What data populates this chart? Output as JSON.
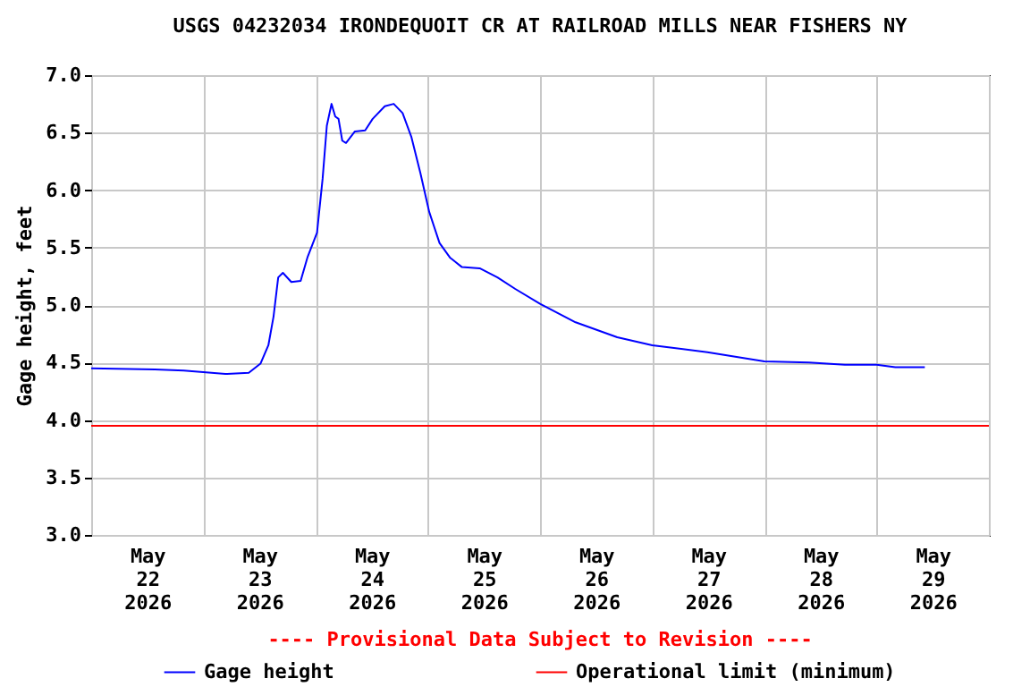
{
  "chart_data": {
    "type": "line",
    "title": "USGS 04232034 IRONDEQUOIT CR AT RAILROAD MILLS NEAR FISHERS NY",
    "ylabel": "Gage height, feet",
    "annotations": [
      "---- Provisional Data Subject to Revision ----"
    ],
    "x": [
      "2026-05-22T00:00",
      "2026-05-22T13:36",
      "2026-05-22T19:48",
      "2026-05-23T04:42",
      "2026-05-23T09:42",
      "2026-05-23T12:12",
      "2026-05-23T13:54",
      "2026-05-23T15:00",
      "2026-05-23T16:00",
      "2026-05-23T17:00",
      "2026-05-23T18:48",
      "2026-05-23T20:48",
      "2026-05-23T22:18",
      "2026-05-24T00:18",
      "2026-05-24T01:30",
      "2026-05-24T02:24",
      "2026-05-24T03:24",
      "2026-05-24T04:12",
      "2026-05-24T04:54",
      "2026-05-24T05:42",
      "2026-05-24T06:30",
      "2026-05-24T08:24",
      "2026-05-24T10:36",
      "2026-05-24T12:12",
      "2026-05-24T14:48",
      "2026-05-24T16:42",
      "2026-05-24T18:36",
      "2026-05-24T20:30",
      "2026-05-24T22:24",
      "2026-05-25T00:18",
      "2026-05-25T02:30",
      "2026-05-25T04:48",
      "2026-05-25T07:18",
      "2026-05-25T11:06",
      "2026-05-25T14:54",
      "2026-05-25T18:42",
      "2026-05-26T00:00",
      "2026-05-26T07:36",
      "2026-05-26T16:30",
      "2026-05-27T00:00",
      "2026-05-27T11:48",
      "2026-05-28T00:00",
      "2026-05-28T09:30",
      "2026-05-28T17:12",
      "2026-05-29T00:00",
      "2026-05-29T04:00",
      "2026-05-29T10:18"
    ],
    "series": [
      {
        "name": "Gage height",
        "color": "#0000ff",
        "values": [
          4.45,
          4.44,
          4.43,
          4.4,
          4.41,
          4.49,
          4.65,
          4.9,
          5.24,
          5.28,
          5.2,
          5.21,
          5.42,
          5.63,
          6.1,
          6.56,
          6.75,
          6.64,
          6.62,
          6.43,
          6.41,
          6.51,
          6.52,
          6.62,
          6.73,
          6.75,
          6.67,
          6.46,
          6.15,
          5.81,
          5.54,
          5.41,
          5.33,
          5.32,
          5.24,
          5.14,
          5.01,
          4.85,
          4.72,
          4.65,
          4.59,
          4.51,
          4.5,
          4.48,
          4.48,
          4.46,
          4.46
        ]
      }
    ],
    "xlim": [
      "2026-05-22T00:00",
      "2026-05-30T00:00"
    ],
    "xticks": [
      {
        "value": "2026-05-22T00:00",
        "label": null
      },
      {
        "value": "2026-05-22T12:00",
        "label": "May 22 2026"
      },
      {
        "value": "2026-05-23T00:00",
        "label": null
      },
      {
        "value": "2026-05-23T12:00",
        "label": "May 23 2026"
      },
      {
        "value": "2026-05-24T00:00",
        "label": null
      },
      {
        "value": "2026-05-24T12:00",
        "label": "May 24 2026"
      },
      {
        "value": "2026-05-25T00:00",
        "label": null
      },
      {
        "value": "2026-05-25T12:00",
        "label": "May 25 2026"
      },
      {
        "value": "2026-05-26T00:00",
        "label": null
      },
      {
        "value": "2026-05-26T12:00",
        "label": "May 26 2026"
      },
      {
        "value": "2026-05-27T00:00",
        "label": null
      },
      {
        "value": "2026-05-27T12:00",
        "label": "May 27 2026"
      },
      {
        "value": "2026-05-28T00:00",
        "label": null
      },
      {
        "value": "2026-05-28T12:00",
        "label": "May 28 2026"
      },
      {
        "value": "2026-05-29T00:00",
        "label": null
      },
      {
        "value": "2026-05-29T12:00",
        "label": "May 29 2026"
      },
      {
        "value": "2026-05-30T00:00",
        "label": null
      }
    ],
    "ylim": [
      3.0,
      7.0
    ],
    "yticks": [
      {
        "value": 3,
        "label": "3.0"
      },
      {
        "value": 3.5,
        "label": "3.5"
      },
      {
        "value": 4,
        "label": "4.0"
      },
      {
        "value": 4.5,
        "label": "4.5"
      },
      {
        "value": 5,
        "label": "5.0"
      },
      {
        "value": 5.5,
        "label": "5.5"
      },
      {
        "value": 6,
        "label": "6.0"
      },
      {
        "value": 6.5,
        "label": "6.5"
      },
      {
        "value": 7,
        "label": "7.0"
      }
    ],
    "ref_lines": [
      {
        "axis": "y",
        "value": 3.95,
        "label": "Operational limit (minimum)",
        "color": "#ff0000"
      }
    ],
    "grid": true,
    "legend": "bottom"
  }
}
